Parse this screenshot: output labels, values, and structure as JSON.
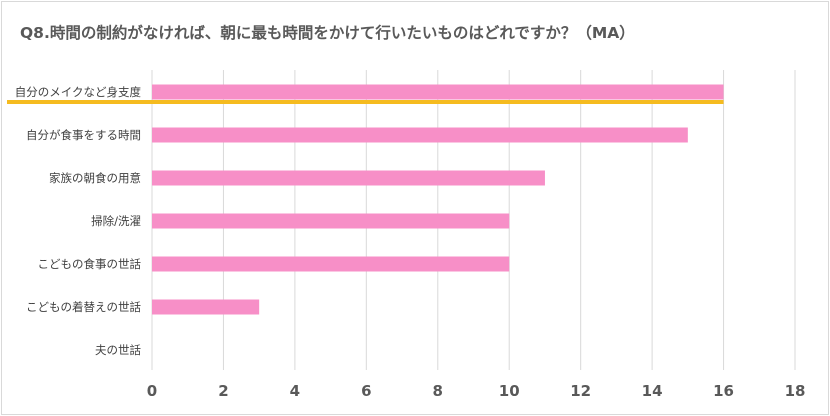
{
  "chart_data": {
    "type": "bar",
    "orientation": "horizontal",
    "title": "Q8.時間の制約がなければ、朝に最も時間をかけて行いたいものはどれですか？（MA）",
    "categories": [
      "自分のメイクなど身支度",
      "自分が食事をする時間",
      "家族の朝食の用意",
      "掃除/洗濯",
      "こどもの食事の世話",
      "こどもの着替えの世話",
      "夫の世話"
    ],
    "values": [
      16,
      15,
      11,
      10,
      10,
      3,
      0
    ],
    "xlim": [
      0,
      18
    ],
    "xticks": [
      0,
      2,
      4,
      6,
      8,
      10,
      12,
      14,
      16,
      18
    ],
    "grid": true,
    "legend": "none",
    "highlight_category": "自分のメイクなど身支度",
    "colors": {
      "bar": "#f78fc7",
      "highlight_line": "#f5bb1f",
      "grid": "#d9d9d9"
    }
  }
}
